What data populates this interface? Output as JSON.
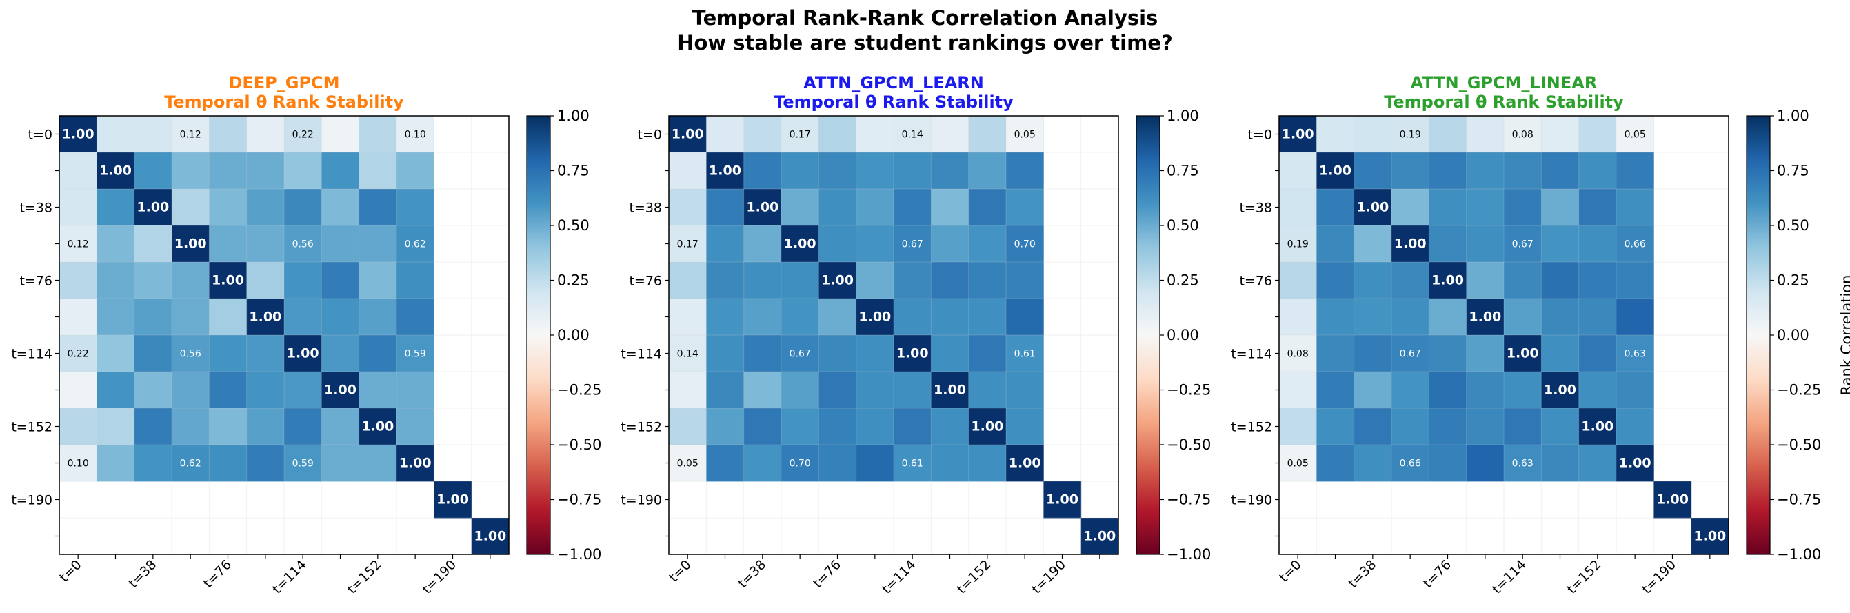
{
  "title": "Temporal Rank-Rank Correlation Analysis",
  "subtitle": "How stable are student rankings over time?",
  "colors": {
    "panel_titles": [
      "#ff7f0e",
      "#1a1aee",
      "#2ca02c"
    ],
    "colormap": "RdBu",
    "diagonal": "#08306b",
    "empty": "#ffffff"
  },
  "chart_data": [
    {
      "type": "heatmap",
      "title": "DEEP_GPCM",
      "subtitle": "Temporal θ Rank Stability",
      "x_tick_labels": [
        "t=0",
        "t=38",
        "t=76",
        "t=114",
        "t=152",
        "t=190"
      ],
      "y_tick_labels": [
        "t=0",
        "t=38",
        "t=76",
        "t=114",
        "t=152",
        "t=190"
      ],
      "grid_size": 12,
      "clim": [
        -1,
        1
      ],
      "colorbar_ticks": [
        "1.00",
        "0.75",
        "0.50",
        "0.25",
        "0.00",
        "−0.25",
        "−0.50",
        "−0.75",
        "−1.00"
      ],
      "colorbar_label": "",
      "matrix": [
        [
          1.0,
          0.18,
          0.18,
          0.12,
          0.28,
          0.1,
          0.22,
          0.05,
          0.28,
          0.1,
          null,
          null
        ],
        [
          0.18,
          1.0,
          0.6,
          0.45,
          0.5,
          0.5,
          0.4,
          0.6,
          0.3,
          0.45,
          null,
          null
        ],
        [
          0.18,
          0.6,
          1.0,
          0.3,
          0.45,
          0.55,
          0.65,
          0.45,
          0.7,
          0.6,
          null,
          null
        ],
        [
          0.12,
          0.45,
          0.3,
          1.0,
          0.5,
          0.5,
          0.56,
          0.52,
          0.52,
          0.62,
          null,
          null
        ],
        [
          0.28,
          0.5,
          0.45,
          0.5,
          1.0,
          0.35,
          0.6,
          0.7,
          0.45,
          0.62,
          null,
          null
        ],
        [
          0.1,
          0.5,
          0.55,
          0.5,
          0.35,
          1.0,
          0.58,
          0.6,
          0.55,
          0.7,
          null,
          null
        ],
        [
          0.22,
          0.4,
          0.65,
          0.56,
          0.6,
          0.58,
          1.0,
          0.58,
          0.7,
          0.59,
          null,
          null
        ],
        [
          0.05,
          0.6,
          0.45,
          0.52,
          0.7,
          0.6,
          0.58,
          1.0,
          0.5,
          0.5,
          null,
          null
        ],
        [
          0.28,
          0.3,
          0.7,
          0.52,
          0.45,
          0.55,
          0.7,
          0.5,
          1.0,
          0.5,
          null,
          null
        ],
        [
          0.1,
          0.45,
          0.6,
          0.62,
          0.62,
          0.7,
          0.59,
          0.5,
          0.5,
          1.0,
          null,
          null
        ],
        [
          null,
          null,
          null,
          null,
          null,
          null,
          null,
          null,
          null,
          null,
          1.0,
          null
        ],
        [
          null,
          null,
          null,
          null,
          null,
          null,
          null,
          null,
          null,
          null,
          null,
          1.0
        ]
      ],
      "labeled_cells": [
        [
          0,
          0
        ],
        [
          0,
          3
        ],
        [
          0,
          6
        ],
        [
          0,
          9
        ],
        [
          3,
          0
        ],
        [
          3,
          3
        ],
        [
          3,
          6
        ],
        [
          3,
          9
        ],
        [
          6,
          0
        ],
        [
          6,
          3
        ],
        [
          6,
          6
        ],
        [
          6,
          9
        ],
        [
          9,
          0
        ],
        [
          9,
          3
        ],
        [
          9,
          6
        ],
        [
          9,
          9
        ],
        [
          1,
          1
        ],
        [
          2,
          2
        ],
        [
          4,
          4
        ],
        [
          5,
          5
        ],
        [
          7,
          7
        ],
        [
          8,
          8
        ],
        [
          10,
          10
        ],
        [
          11,
          11
        ]
      ]
    },
    {
      "type": "heatmap",
      "title": "ATTN_GPCM_LEARN",
      "subtitle": "Temporal θ Rank Stability",
      "x_tick_labels": [
        "t=0",
        "t=38",
        "t=76",
        "t=114",
        "t=152",
        "t=190"
      ],
      "y_tick_labels": [
        "t=0",
        "t=38",
        "t=76",
        "t=114",
        "t=152",
        "t=190"
      ],
      "grid_size": 12,
      "clim": [
        -1,
        1
      ],
      "colorbar_ticks": [
        "1.00",
        "0.75",
        "0.50",
        "0.25",
        "0.00",
        "−0.25",
        "−0.50",
        "−0.75",
        "−1.00"
      ],
      "colorbar_label": "",
      "matrix": [
        [
          1.0,
          0.15,
          0.25,
          0.17,
          0.3,
          0.12,
          0.14,
          0.1,
          0.28,
          0.05,
          null,
          null
        ],
        [
          0.15,
          1.0,
          0.7,
          0.62,
          0.65,
          0.6,
          0.62,
          0.65,
          0.55,
          0.7,
          null,
          null
        ],
        [
          0.25,
          0.7,
          1.0,
          0.5,
          0.62,
          0.55,
          0.7,
          0.45,
          0.72,
          0.6,
          null,
          null
        ],
        [
          0.17,
          0.62,
          0.5,
          1.0,
          0.62,
          0.6,
          0.67,
          0.55,
          0.6,
          0.7,
          null,
          null
        ],
        [
          0.3,
          0.65,
          0.62,
          0.62,
          1.0,
          0.5,
          0.65,
          0.72,
          0.68,
          0.68,
          null,
          null
        ],
        [
          0.12,
          0.6,
          0.55,
          0.6,
          0.5,
          1.0,
          0.62,
          0.62,
          0.62,
          0.78,
          null,
          null
        ],
        [
          0.14,
          0.62,
          0.7,
          0.67,
          0.65,
          0.62,
          1.0,
          0.62,
          0.72,
          0.61,
          null,
          null
        ],
        [
          0.1,
          0.65,
          0.45,
          0.55,
          0.72,
          0.62,
          0.62,
          1.0,
          0.62,
          0.62,
          null,
          null
        ],
        [
          0.28,
          0.55,
          0.72,
          0.6,
          0.68,
          0.62,
          0.72,
          0.62,
          1.0,
          0.62,
          null,
          null
        ],
        [
          0.05,
          0.7,
          0.6,
          0.7,
          0.68,
          0.78,
          0.61,
          0.62,
          0.62,
          1.0,
          null,
          null
        ],
        [
          null,
          null,
          null,
          null,
          null,
          null,
          null,
          null,
          null,
          null,
          1.0,
          null
        ],
        [
          null,
          null,
          null,
          null,
          null,
          null,
          null,
          null,
          null,
          null,
          null,
          1.0
        ]
      ],
      "labeled_cells": [
        [
          0,
          0
        ],
        [
          0,
          3
        ],
        [
          0,
          6
        ],
        [
          0,
          9
        ],
        [
          3,
          0
        ],
        [
          3,
          3
        ],
        [
          3,
          6
        ],
        [
          3,
          9
        ],
        [
          6,
          0
        ],
        [
          6,
          3
        ],
        [
          6,
          6
        ],
        [
          6,
          9
        ],
        [
          9,
          0
        ],
        [
          9,
          3
        ],
        [
          9,
          6
        ],
        [
          9,
          9
        ],
        [
          1,
          1
        ],
        [
          2,
          2
        ],
        [
          4,
          4
        ],
        [
          5,
          5
        ],
        [
          7,
          7
        ],
        [
          8,
          8
        ],
        [
          10,
          10
        ],
        [
          11,
          11
        ]
      ]
    },
    {
      "type": "heatmap",
      "title": "ATTN_GPCM_LINEAR",
      "subtitle": "Temporal θ Rank Stability",
      "x_tick_labels": [
        "t=0",
        "t=38",
        "t=76",
        "t=114",
        "t=152",
        "t=190"
      ],
      "y_tick_labels": [
        "t=0",
        "t=38",
        "t=76",
        "t=114",
        "t=152",
        "t=190"
      ],
      "grid_size": 12,
      "clim": [
        -1,
        1
      ],
      "colorbar_ticks": [
        "1.00",
        "0.75",
        "0.50",
        "0.25",
        "0.00",
        "−0.25",
        "−0.50",
        "−0.75",
        "−1.00"
      ],
      "colorbar_label": "Rank Correlation",
      "matrix": [
        [
          1.0,
          0.18,
          0.2,
          0.19,
          0.28,
          0.15,
          0.08,
          0.12,
          0.25,
          0.05,
          null,
          null
        ],
        [
          0.18,
          1.0,
          0.7,
          0.65,
          0.7,
          0.62,
          0.65,
          0.7,
          0.62,
          0.7,
          null,
          null
        ],
        [
          0.2,
          0.7,
          1.0,
          0.45,
          0.62,
          0.6,
          0.7,
          0.5,
          0.72,
          0.62,
          null,
          null
        ],
        [
          0.19,
          0.65,
          0.45,
          1.0,
          0.65,
          0.62,
          0.67,
          0.6,
          0.62,
          0.66,
          null,
          null
        ],
        [
          0.28,
          0.7,
          0.62,
          0.65,
          1.0,
          0.5,
          0.65,
          0.75,
          0.7,
          0.68,
          null,
          null
        ],
        [
          0.15,
          0.62,
          0.6,
          0.62,
          0.5,
          1.0,
          0.55,
          0.65,
          0.65,
          0.8,
          null,
          null
        ],
        [
          0.08,
          0.65,
          0.7,
          0.67,
          0.65,
          0.55,
          1.0,
          0.62,
          0.72,
          0.63,
          null,
          null
        ],
        [
          0.12,
          0.7,
          0.5,
          0.6,
          0.75,
          0.65,
          0.62,
          1.0,
          0.62,
          0.65,
          null,
          null
        ],
        [
          0.25,
          0.62,
          0.72,
          0.62,
          0.7,
          0.65,
          0.72,
          0.62,
          1.0,
          0.62,
          null,
          null
        ],
        [
          0.05,
          0.7,
          0.62,
          0.66,
          0.68,
          0.8,
          0.63,
          0.65,
          0.62,
          1.0,
          null,
          null
        ],
        [
          null,
          null,
          null,
          null,
          null,
          null,
          null,
          null,
          null,
          null,
          1.0,
          null
        ],
        [
          null,
          null,
          null,
          null,
          null,
          null,
          null,
          null,
          null,
          null,
          null,
          1.0
        ]
      ],
      "labeled_cells": [
        [
          0,
          0
        ],
        [
          0,
          3
        ],
        [
          0,
          6
        ],
        [
          0,
          9
        ],
        [
          3,
          0
        ],
        [
          3,
          3
        ],
        [
          3,
          6
        ],
        [
          3,
          9
        ],
        [
          6,
          0
        ],
        [
          6,
          3
        ],
        [
          6,
          6
        ],
        [
          6,
          9
        ],
        [
          9,
          0
        ],
        [
          9,
          3
        ],
        [
          9,
          6
        ],
        [
          9,
          9
        ],
        [
          1,
          1
        ],
        [
          2,
          2
        ],
        [
          4,
          4
        ],
        [
          5,
          5
        ],
        [
          7,
          7
        ],
        [
          8,
          8
        ],
        [
          10,
          10
        ],
        [
          11,
          11
        ]
      ]
    }
  ]
}
